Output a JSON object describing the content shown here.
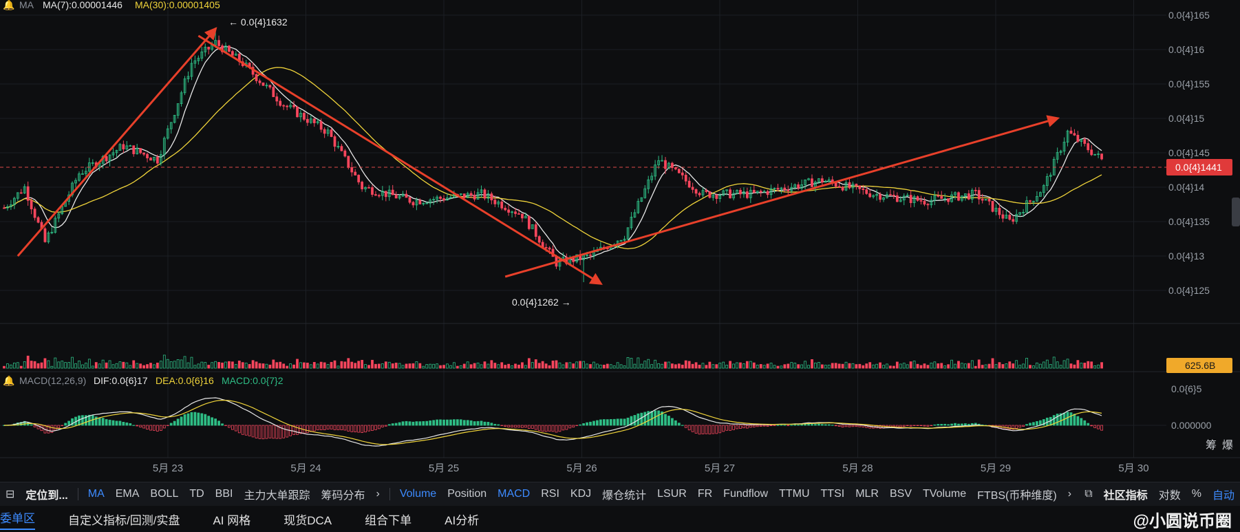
{
  "header": {
    "ma_label": "MA",
    "ma7_label": "MA(7):0.00001446",
    "ma30_label": "MA(30):0.00001405"
  },
  "macd_header": {
    "label": "MACD(12,26,9)",
    "dif": "DIF:0.0{6}17",
    "dea": "DEA:0.0{6}16",
    "macd": "MACD:0.0{7}2"
  },
  "annotations": {
    "high": "← 0.0{4}1632",
    "low": "0.0{4}1262 →"
  },
  "price_tag": "0.0{4}1441",
  "volume_tag": "625.6B",
  "colors": {
    "up": "#2ebd85",
    "down": "#f6465d",
    "ma7": "#e8e8e8",
    "ma30": "#f0d43a",
    "trend": "#e8402a"
  },
  "toolbar": {
    "locate": "定位到...",
    "main_indicators": [
      "MA",
      "EMA",
      "BOLL",
      "TD",
      "BBI",
      "主力大单跟踪",
      "筹码分布"
    ],
    "sub_indicators": [
      "Volume",
      "Position",
      "MACD",
      "RSI",
      "KDJ",
      "爆仓统计",
      "LSUR",
      "FR",
      "Fundflow",
      "TTMU",
      "TTSI",
      "MLR",
      "BSV",
      "TVolume",
      "FTBS(币种维度)"
    ],
    "community": "社区指标",
    "log": "对数",
    "percent": "%",
    "auto": "自动"
  },
  "bottom_tabs": [
    "委单区",
    "自定义指标/回测/实盘",
    "AI 网格",
    "现货DCA",
    "组合下单",
    "AI分析"
  ],
  "watermark": "@小圆说币圈",
  "side_labels": [
    "筹",
    "爆"
  ],
  "chart_data": {
    "type": "candlestick",
    "x_labels": [
      "5月 23",
      "5月 24",
      "5月 25",
      "5月 26",
      "5月 27",
      "5月 28",
      "5月 29",
      "5月 30"
    ],
    "price_axis_labels": [
      "0.0{4}165",
      "0.0{4}16",
      "0.0{4}155",
      "0.0{4}15",
      "0.0{4}145",
      "0.0{4}14",
      "0.0{4}135",
      "0.0{4}13",
      "0.0{4}125"
    ],
    "price_axis_values": [
      1.65e-05,
      1.6e-05,
      1.55e-05,
      1.5e-05,
      1.45e-05,
      1.4e-05,
      1.35e-05,
      1.3e-05,
      1.25e-05
    ],
    "macd_axis_labels": [
      "0.0{6}5",
      "0.000000"
    ],
    "ylim": [
      1.22e-05,
      1.66e-05
    ],
    "current_price": 1.441e-05,
    "high": 1.632e-05,
    "low": 1.262e-05,
    "price_waypoints": [
      [
        0,
        1.37e-05
      ],
      [
        6,
        1.4e-05
      ],
      [
        12,
        1.32e-05
      ],
      [
        22,
        1.42e-05
      ],
      [
        35,
        1.46e-05
      ],
      [
        45,
        1.44e-05
      ],
      [
        55,
        1.58e-05
      ],
      [
        62,
        1.61e-05
      ],
      [
        70,
        1.58e-05
      ],
      [
        82,
        1.52e-05
      ],
      [
        95,
        1.48e-05
      ],
      [
        105,
        1.4e-05
      ],
      [
        120,
        1.38e-05
      ],
      [
        140,
        1.39e-05
      ],
      [
        152,
        1.36e-05
      ],
      [
        162,
        1.29e-05
      ],
      [
        172,
        1.3e-05
      ],
      [
        182,
        1.33e-05
      ],
      [
        192,
        1.44e-05
      ],
      [
        205,
        1.39e-05
      ],
      [
        220,
        1.39e-05
      ],
      [
        240,
        1.41e-05
      ],
      [
        255,
        1.39e-05
      ],
      [
        270,
        1.38e-05
      ],
      [
        285,
        1.39e-05
      ],
      [
        295,
        1.35e-05
      ],
      [
        305,
        1.4e-05
      ],
      [
        312,
        1.48e-05
      ],
      [
        322,
        1.44e-05
      ]
    ],
    "trend_lines": [
      [
        [
          4,
          1.3e-05
        ],
        [
          62,
          1.63e-05
        ]
      ],
      [
        [
          57,
          1.62e-05
        ],
        [
          175,
          1.26e-05
        ]
      ],
      [
        [
          147,
          1.27e-05
        ],
        [
          309,
          1.5e-05
        ]
      ]
    ],
    "candle_count": 323
  }
}
